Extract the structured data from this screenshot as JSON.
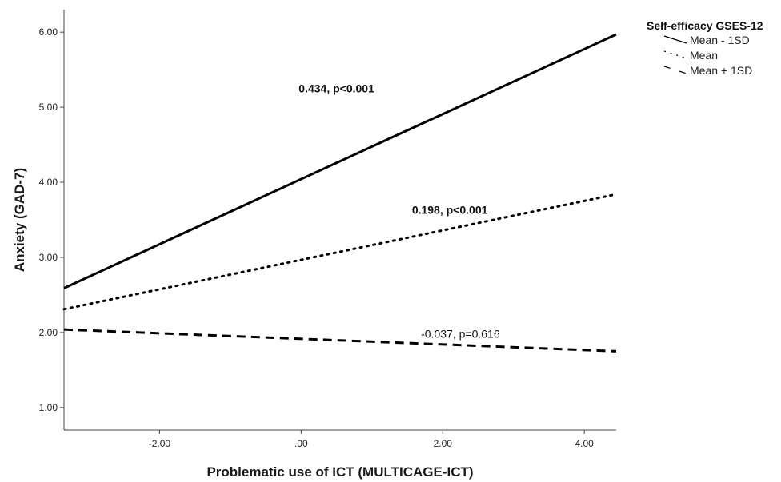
{
  "chart_data": {
    "type": "line",
    "xlabel": "Problematic use of ICT (MULTICAGE-ICT)",
    "ylabel": "Anxiety (GAD-7)",
    "xlim": [
      -3.35,
      4.45
    ],
    "ylim": [
      0.7,
      6.3
    ],
    "x_ticks": [
      -2,
      0,
      2,
      4
    ],
    "x_tick_labels": [
      "-2.00",
      ".00",
      "2.00",
      "4.00"
    ],
    "y_ticks": [
      1,
      2,
      3,
      4,
      5,
      6
    ],
    "y_tick_labels": [
      "1.00",
      "2.00",
      "3.00",
      "4.00",
      "5.00",
      "6.00"
    ],
    "grid": false,
    "legend": {
      "title": "Self-efficacy GSES-12",
      "placement": "top-right"
    },
    "series": [
      {
        "name": "Mean - 1SD",
        "style": "solid",
        "x": [
          -3.35,
          4.45
        ],
        "y": [
          2.59,
          5.97
        ],
        "annotation": {
          "text": "0.434, p<0.001",
          "x": 0.5,
          "y": 5.2,
          "bold": true
        }
      },
      {
        "name": "Mean",
        "style": "dotted",
        "x": [
          -3.35,
          4.45
        ],
        "y": [
          2.31,
          3.84
        ],
        "annotation": {
          "text": "0.198, p<0.001",
          "x": 2.1,
          "y": 3.58,
          "bold": true
        }
      },
      {
        "name": "Mean + 1SD",
        "style": "dashed",
        "x": [
          -3.35,
          4.45
        ],
        "y": [
          2.04,
          1.75
        ],
        "annotation": {
          "text": "-0.037, p=0.616",
          "x": 2.25,
          "y": 1.93,
          "bold": false
        }
      }
    ]
  }
}
